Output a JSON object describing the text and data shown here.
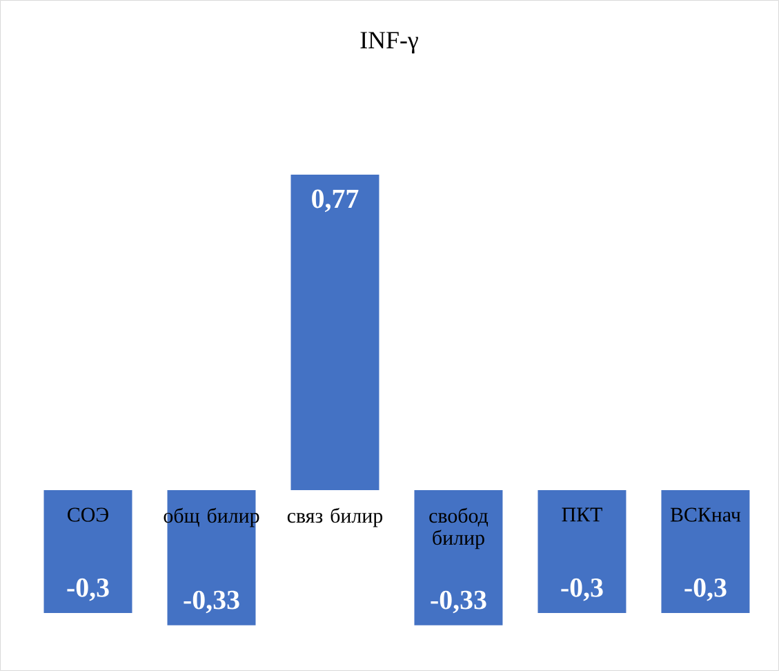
{
  "chart_data": {
    "type": "bar",
    "title": "INF-γ",
    "categories": [
      "СОЭ",
      "общ билир",
      "связ билир",
      "свобод билир",
      "ПКТ",
      "ВСКнач"
    ],
    "values": [
      -0.3,
      -0.33,
      0.77,
      -0.33,
      -0.3,
      -0.3
    ],
    "value_labels": [
      "-0,3",
      "-0,33",
      "0,77",
      "-0,33",
      "-0,3",
      "-0,3"
    ],
    "color": "#4472c4"
  }
}
